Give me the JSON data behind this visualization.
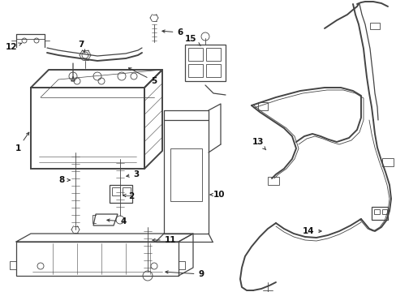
{
  "bg_color": "#ffffff",
  "line_color": "#444444",
  "text_color": "#111111",
  "fig_w": 4.89,
  "fig_h": 3.6,
  "dpi": 100,
  "label_fontsize": 7.5,
  "label_fontweight": "bold"
}
